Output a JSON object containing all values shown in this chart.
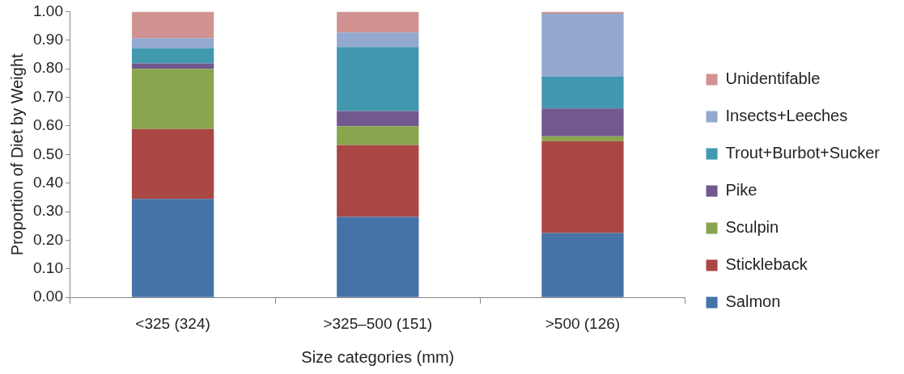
{
  "chart_data": {
    "type": "bar",
    "stacked": true,
    "xlabel": "Size categories (mm)",
    "ylabel": "Proportion of Diet by Weight",
    "categories": [
      "<325 (324)",
      ">325–500 (151)",
      ">500 (126)"
    ],
    "series": [
      {
        "name": "Salmon",
        "color": "#4572a7",
        "values": [
          0.345,
          0.282,
          0.225
        ]
      },
      {
        "name": "Stickleback",
        "color": "#aa4643",
        "values": [
          0.244,
          0.251,
          0.322
        ]
      },
      {
        "name": "Sculpin",
        "color": "#89a54e",
        "values": [
          0.211,
          0.066,
          0.017
        ]
      },
      {
        "name": "Pike",
        "color": "#71588f",
        "values": [
          0.019,
          0.053,
          0.097
        ]
      },
      {
        "name": "Trout+Burbot+Sucker",
        "color": "#4198af",
        "values": [
          0.053,
          0.224,
          0.111
        ]
      },
      {
        "name": "Insects+Leeches",
        "color": "#93a9cf",
        "values": [
          0.035,
          0.051,
          0.221
        ]
      },
      {
        "name": "Unidentifable",
        "color": "#d19392",
        "values": [
          0.093,
          0.073,
          0.007
        ]
      }
    ],
    "ylim": [
      0,
      1
    ],
    "yticks": [
      {
        "value": 0,
        "label": "0.00"
      },
      {
        "value": 0.1,
        "label": "0.10"
      },
      {
        "value": 0.2,
        "label": "0.20"
      },
      {
        "value": 0.3,
        "label": "0.30"
      },
      {
        "value": 0.4,
        "label": "0.40"
      },
      {
        "value": 0.5,
        "label": "0.50"
      },
      {
        "value": 0.6,
        "label": "0.60"
      },
      {
        "value": 0.7,
        "label": "0.70"
      },
      {
        "value": 0.8,
        "label": "0.80"
      },
      {
        "value": 0.9,
        "label": "0.90"
      },
      {
        "value": 1,
        "label": "1.00"
      }
    ],
    "legend": "right"
  }
}
